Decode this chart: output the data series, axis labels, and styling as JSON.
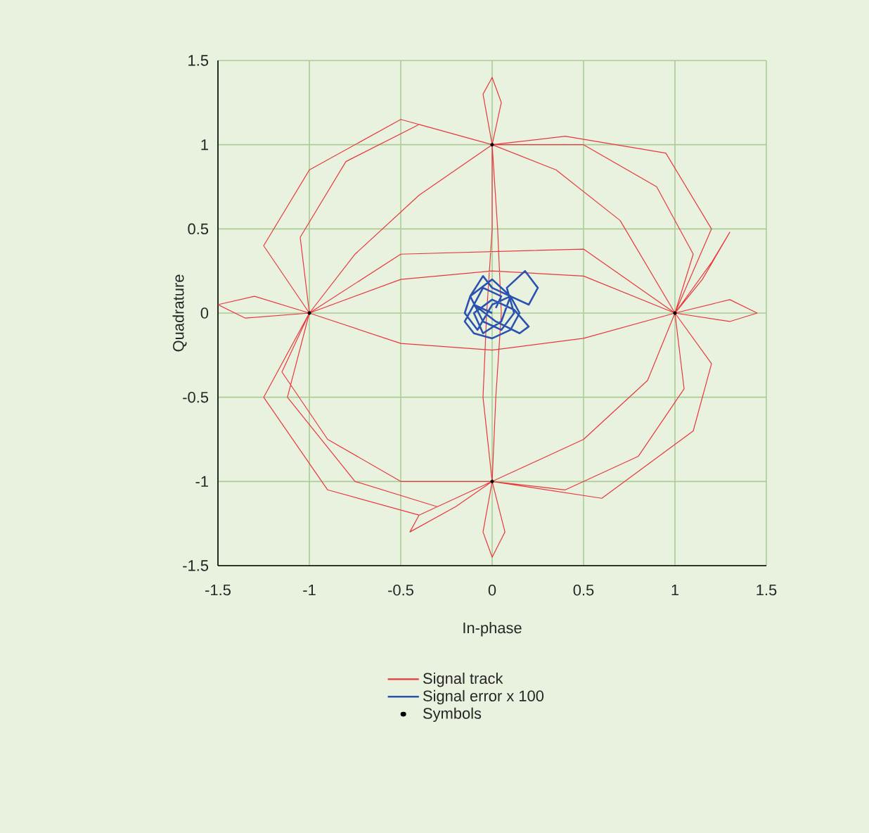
{
  "chart_data": {
    "type": "line",
    "xlabel": "In-phase",
    "ylabel": "Quadrature",
    "xlim": [
      -1.5,
      1.5
    ],
    "ylim": [
      -1.5,
      1.5
    ],
    "xticks": [
      -1.5,
      -1,
      -0.5,
      0,
      0.5,
      1,
      1.5
    ],
    "yticks": [
      -1.5,
      -1,
      -0.5,
      0,
      0.5,
      1,
      1.5
    ],
    "grid": true,
    "legend": "bottom",
    "series": [
      {
        "name": "Signal track",
        "color": "#e8383d",
        "x": [
          -1,
          -1.05,
          -0.8,
          -0.4,
          0,
          0.5,
          0.9,
          1.1,
          1,
          1.3,
          1.45,
          1.3,
          1,
          1.05,
          0.8,
          0.4,
          0,
          -0.05,
          0,
          0.07,
          0,
          -0.5,
          -0.9,
          -1.15,
          -1,
          -1.3,
          -1.5,
          -1.35,
          -1,
          -0.5,
          0,
          0.5,
          1,
          0.7,
          0.35,
          0,
          -0.05,
          0,
          0.05,
          0,
          0.03,
          0.05,
          0.02,
          0,
          0.5,
          0.85,
          1,
          0.5,
          0,
          -0.5,
          -1,
          -1.12,
          -0.75,
          -0.3,
          0,
          -0.4,
          -0.45,
          -0.2,
          0,
          -0.05,
          -0.03,
          0,
          0,
          -0.5,
          -1,
          -1.25,
          -1,
          -0.5,
          0.5,
          1,
          1.2,
          1.3,
          1.15,
          1,
          1.2,
          0.95,
          0.4,
          0,
          -0.4,
          -0.75,
          -1,
          -1.25,
          -0.9,
          -0.4,
          0,
          0.6,
          1.1,
          1.2,
          1
        ],
        "values": [
          0,
          0.45,
          0.9,
          1.12,
          1,
          1,
          0.75,
          0.35,
          0,
          0.08,
          0,
          -0.05,
          0,
          -0.45,
          -0.85,
          -1.05,
          -1,
          -1.3,
          -1.45,
          -1.3,
          -1,
          -1,
          -0.75,
          -0.35,
          0,
          0.1,
          0.05,
          -0.03,
          0,
          -0.18,
          -0.22,
          -0.15,
          0,
          0.55,
          0.85,
          1,
          1.3,
          1.4,
          1.25,
          1,
          0.5,
          0,
          -0.5,
          -1,
          -0.75,
          -0.4,
          0,
          0.22,
          0.25,
          0.2,
          0,
          -0.5,
          -1,
          -1.15,
          -1,
          -1.2,
          -1.3,
          -1.15,
          -1,
          -0.5,
          0,
          0.5,
          1,
          1.15,
          0.85,
          0.4,
          0,
          0.35,
          0.38,
          0,
          0.3,
          0.48,
          0.2,
          0,
          0.5,
          0.95,
          1.05,
          1,
          0.7,
          0.35,
          0,
          -0.5,
          -1.05,
          -1.2,
          -1,
          -1.1,
          -0.7,
          -0.3,
          0
        ]
      },
      {
        "name": "Signal error x 100",
        "color": "#2a52b0",
        "x": [
          0,
          -0.1,
          -0.15,
          -0.1,
          0,
          0.1,
          0.15,
          0.1,
          0,
          -0.05,
          -0.12,
          -0.05,
          0.05,
          0.12,
          0.08,
          0.18,
          0.25,
          0.2,
          0.1,
          0,
          -0.08,
          -0.15,
          -0.12,
          0,
          0.1,
          0.05,
          -0.05,
          -0.1,
          0,
          0.12,
          0.2,
          0.15,
          0.02,
          -0.1,
          -0.05,
          0.05,
          0.02
        ],
        "values": [
          0,
          0.05,
          -0.05,
          -0.12,
          -0.15,
          -0.1,
          0,
          0.1,
          0.15,
          0.22,
          0.1,
          -0.05,
          -0.1,
          0,
          0.15,
          0.25,
          0.15,
          0.05,
          0.1,
          0.05,
          -0.1,
          0,
          0.1,
          0.2,
          0.1,
          -0.05,
          -0.12,
          0,
          0.08,
          0.02,
          -0.08,
          -0.12,
          -0.05,
          0.05,
          0.15,
          0.1,
          0.03
        ]
      },
      {
        "name": "Symbols",
        "color": "#000000",
        "type": "scatter",
        "marker": "circle",
        "x": [
          1,
          0,
          -1,
          0
        ],
        "values": [
          0,
          1,
          0,
          -1
        ]
      }
    ]
  }
}
